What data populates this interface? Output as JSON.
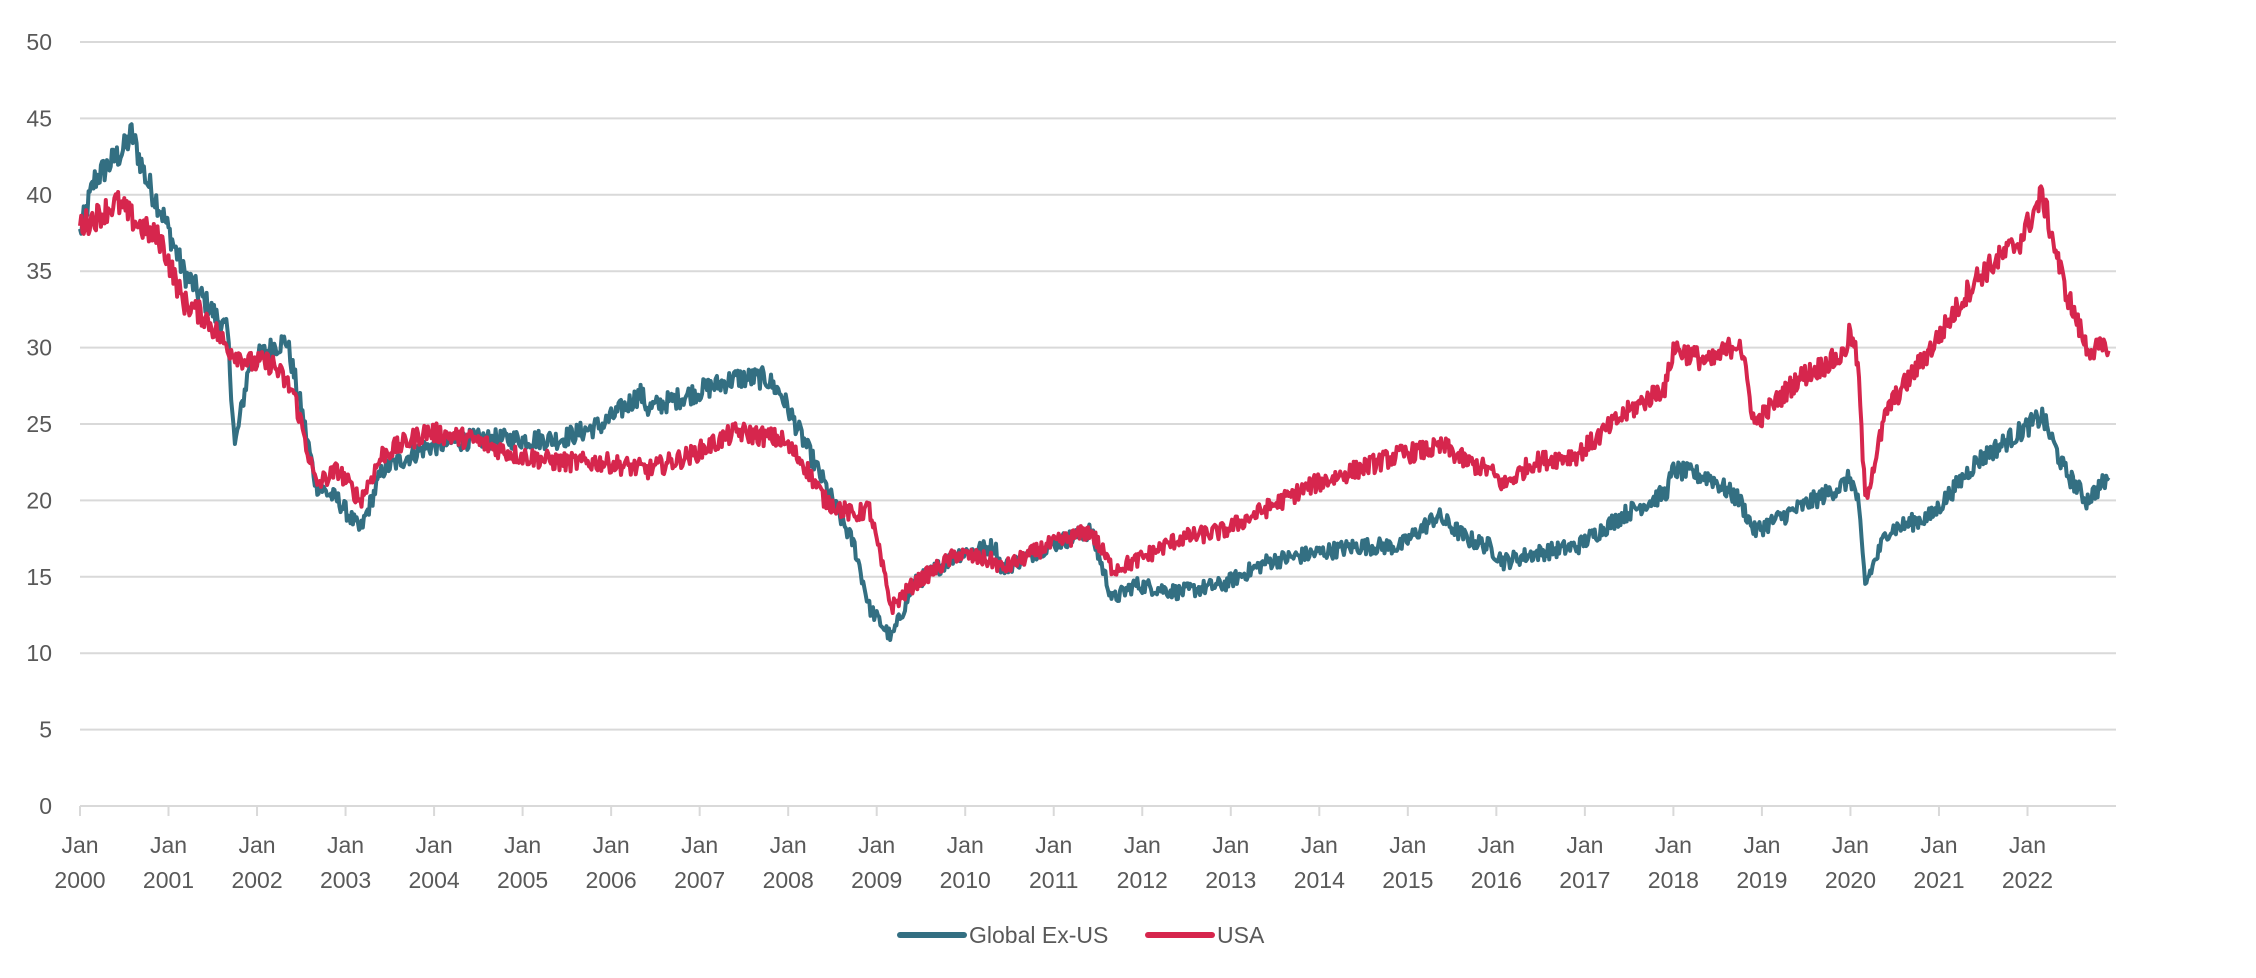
{
  "chart_data": {
    "type": "line",
    "title": "",
    "xlabel": "",
    "ylabel": "",
    "ylim": [
      0,
      50
    ],
    "xlim": [
      "2000-01",
      "2023-01"
    ],
    "y_ticks": [
      "0",
      "5",
      "10",
      "15",
      "20",
      "25",
      "30",
      "35",
      "40",
      "45",
      "50"
    ],
    "x_ticks": [
      {
        "month": "Jan",
        "year": "2000"
      },
      {
        "month": "Jan",
        "year": "2001"
      },
      {
        "month": "Jan",
        "year": "2002"
      },
      {
        "month": "Jan",
        "year": "2003"
      },
      {
        "month": "Jan",
        "year": "2004"
      },
      {
        "month": "Jan",
        "year": "2005"
      },
      {
        "month": "Jan",
        "year": "2006"
      },
      {
        "month": "Jan",
        "year": "2007"
      },
      {
        "month": "Jan",
        "year": "2008"
      },
      {
        "month": "Jan",
        "year": "2009"
      },
      {
        "month": "Jan",
        "year": "2010"
      },
      {
        "month": "Jan",
        "year": "2011"
      },
      {
        "month": "Jan",
        "year": "2012"
      },
      {
        "month": "Jan",
        "year": "2013"
      },
      {
        "month": "Jan",
        "year": "2014"
      },
      {
        "month": "Jan",
        "year": "2015"
      },
      {
        "month": "Jan",
        "year": "2016"
      },
      {
        "month": "Jan",
        "year": "2017"
      },
      {
        "month": "Jan",
        "year": "2018"
      },
      {
        "month": "Jan",
        "year": "2019"
      },
      {
        "month": "Jan",
        "year": "2020"
      },
      {
        "month": "Jan",
        "year": "2021"
      },
      {
        "month": "Jan",
        "year": "2022"
      }
    ],
    "grid": true,
    "legend": "bottom-center",
    "series": [
      {
        "name": "Global Ex-US",
        "color": "#336f82",
        "x": [
          "2000-01",
          "2000-03",
          "2000-05",
          "2000-07",
          "2000-08",
          "2000-10",
          "2000-12",
          "2001-03",
          "2001-06",
          "2001-09",
          "2001-10",
          "2001-12",
          "2002-03",
          "2002-05",
          "2002-07",
          "2002-09",
          "2002-12",
          "2003-03",
          "2003-06",
          "2003-12",
          "2004-06",
          "2004-12",
          "2005-06",
          "2005-12",
          "2006-05",
          "2006-06",
          "2006-12",
          "2007-03",
          "2007-06",
          "2007-10",
          "2007-12",
          "2008-03",
          "2008-06",
          "2008-10",
          "2008-12",
          "2009-03",
          "2009-06",
          "2009-12",
          "2010-05",
          "2010-06",
          "2010-12",
          "2011-06",
          "2011-09",
          "2011-12",
          "2012-06",
          "2012-12",
          "2013-06",
          "2013-12",
          "2014-06",
          "2014-12",
          "2015-05",
          "2015-09",
          "2015-12",
          "2016-02",
          "2016-06",
          "2016-12",
          "2017-06",
          "2017-12",
          "2018-01",
          "2018-06",
          "2018-10",
          "2018-12",
          "2019-06",
          "2019-12",
          "2020-01",
          "2020-02",
          "2020-03",
          "2020-06",
          "2020-12",
          "2021-06",
          "2021-12",
          "2022-03",
          "2022-06",
          "2022-09",
          "2022-12"
        ],
        "values": [
          37.5,
          41,
          42,
          43,
          44,
          41,
          39,
          35,
          33,
          31,
          23.5,
          29,
          30,
          30.5,
          26,
          21,
          20,
          18,
          22,
          23.5,
          24,
          24,
          24,
          25,
          27,
          26,
          27,
          27.5,
          28,
          28,
          27,
          24,
          21,
          17,
          13,
          11,
          14.5,
          16.5,
          17,
          15.5,
          17,
          18,
          13.5,
          14.5,
          14,
          14.5,
          16,
          16.5,
          17,
          17,
          19,
          17.5,
          17,
          16,
          16.5,
          17,
          19,
          20.5,
          22,
          21.5,
          20,
          18,
          19.5,
          21,
          21.5,
          20,
          14.5,
          18,
          19,
          22.5,
          24.5,
          25.5,
          22,
          20,
          21.5
        ]
      },
      {
        "name": "USA",
        "color": "#d6264d",
        "x": [
          "2000-01",
          "2000-03",
          "2000-06",
          "2000-09",
          "2000-12",
          "2001-03",
          "2001-06",
          "2001-09",
          "2001-12",
          "2002-03",
          "2002-06",
          "2002-09",
          "2002-12",
          "2003-03",
          "2003-06",
          "2003-12",
          "2004-06",
          "2004-12",
          "2005-06",
          "2005-12",
          "2006-06",
          "2006-12",
          "2007-06",
          "2007-12",
          "2008-03",
          "2008-06",
          "2008-10",
          "2008-12",
          "2009-03",
          "2009-06",
          "2009-12",
          "2010-05",
          "2010-06",
          "2010-12",
          "2011-06",
          "2011-09",
          "2011-12",
          "2012-06",
          "2012-12",
          "2013-06",
          "2013-12",
          "2014-06",
          "2014-12",
          "2015-06",
          "2015-09",
          "2015-12",
          "2016-02",
          "2016-06",
          "2016-12",
          "2017-06",
          "2017-12",
          "2018-01",
          "2018-06",
          "2018-10",
          "2018-12",
          "2019-06",
          "2019-12",
          "2020-01",
          "2020-02",
          "2020-03",
          "2020-06",
          "2020-12",
          "2021-06",
          "2021-12",
          "2022-03",
          "2022-06",
          "2022-09",
          "2022-12"
        ],
        "values": [
          38,
          38.5,
          39.5,
          38,
          37,
          33,
          32,
          30,
          29,
          29,
          27,
          21,
          22,
          20,
          23,
          24.5,
          24,
          23,
          22.5,
          22.5,
          22,
          23,
          24.5,
          24,
          22.5,
          20,
          19,
          19.5,
          13,
          14.5,
          16.5,
          16,
          15.5,
          17,
          18,
          15.5,
          16,
          17.5,
          18,
          19.5,
          21,
          22,
          23,
          23.5,
          22.5,
          22,
          21,
          22.5,
          23,
          25.5,
          27.5,
          30,
          29,
          30.5,
          25,
          28,
          29.5,
          31,
          29,
          20,
          26,
          30,
          34.5,
          37,
          40,
          34,
          30,
          29.8
        ]
      }
    ]
  }
}
